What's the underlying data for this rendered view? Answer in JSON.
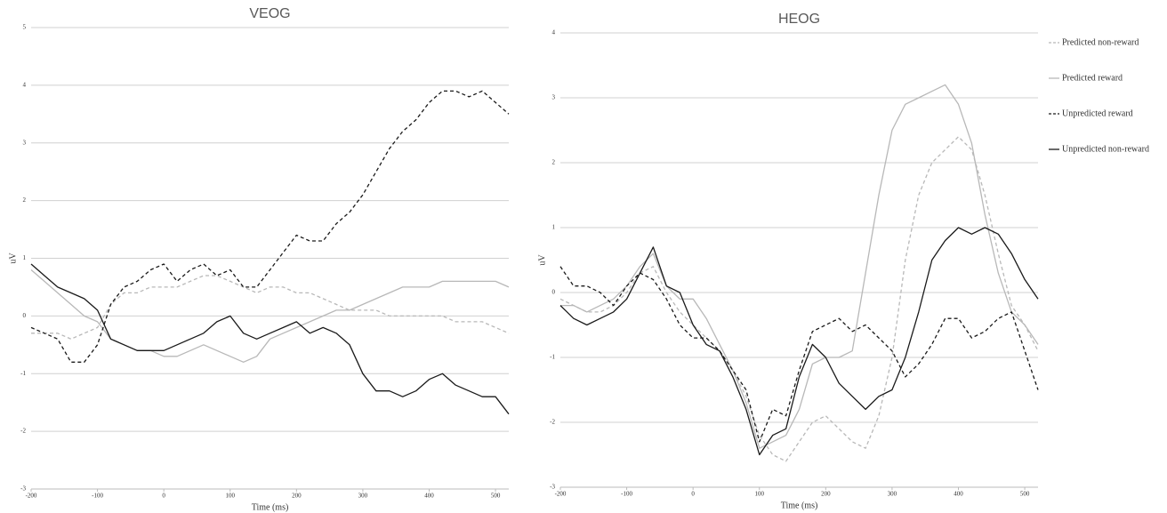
{
  "chart_data": [
    {
      "type": "line",
      "title": "VEOG",
      "xlabel": "Time (ms)",
      "ylabel": "uV",
      "x": [
        -200,
        -180,
        -160,
        -140,
        -120,
        -100,
        -80,
        -60,
        -40,
        -20,
        0,
        20,
        40,
        60,
        80,
        100,
        120,
        140,
        160,
        180,
        200,
        220,
        240,
        260,
        280,
        300,
        320,
        340,
        360,
        380,
        400,
        420,
        440,
        460,
        480,
        500,
        520
      ],
      "xlim": [
        -200,
        520
      ],
      "xticks": [
        -200,
        -100,
        0,
        100,
        200,
        300,
        400,
        500
      ],
      "ylim": [
        -3,
        5
      ],
      "yticks": [
        -3,
        -2,
        -1,
        0,
        1,
        2,
        3,
        4,
        5
      ],
      "grid": true,
      "series": [
        {
          "color": "#b8b8b8",
          "style": "dashed",
          "values": [
            -0.3,
            -0.3,
            -0.3,
            -0.4,
            -0.3,
            -0.2,
            0.2,
            0.4,
            0.4,
            0.5,
            0.5,
            0.5,
            0.6,
            0.7,
            0.7,
            0.6,
            0.5,
            0.4,
            0.5,
            0.5,
            0.4,
            0.4,
            0.3,
            0.2,
            0.1,
            0.1,
            0.1,
            0,
            0,
            0,
            0,
            0,
            -0.1,
            -0.1,
            -0.1,
            -0.2,
            -0.3
          ]
        },
        {
          "color": "#b8b8b8",
          "style": "solid",
          "values": [
            0.8,
            0.6,
            0.4,
            0.2,
            0,
            -0.1,
            -0.4,
            -0.5,
            -0.6,
            -0.6,
            -0.7,
            -0.7,
            -0.6,
            -0.5,
            -0.6,
            -0.7,
            -0.8,
            -0.7,
            -0.4,
            -0.3,
            -0.2,
            -0.1,
            0,
            0.1,
            0.1,
            0.2,
            0.3,
            0.4,
            0.5,
            0.5,
            0.5,
            0.6,
            0.6,
            0.6,
            0.6,
            0.6,
            0.5
          ]
        },
        {
          "color": "#1a1a1a",
          "style": "dashed",
          "values": [
            -0.2,
            -0.3,
            -0.4,
            -0.8,
            -0.8,
            -0.5,
            0.2,
            0.5,
            0.6,
            0.8,
            0.9,
            0.6,
            0.8,
            0.9,
            0.7,
            0.8,
            0.5,
            0.5,
            0.8,
            1.1,
            1.4,
            1.3,
            1.3,
            1.6,
            1.8,
            2.1,
            2.5,
            2.9,
            3.2,
            3.4,
            3.7,
            3.9,
            3.9,
            3.8,
            3.9,
            3.7,
            3.5
          ]
        },
        {
          "color": "#1a1a1a",
          "style": "solid",
          "values": [
            0.9,
            0.7,
            0.5,
            0.4,
            0.3,
            0.1,
            -0.4,
            -0.5,
            -0.6,
            -0.6,
            -0.6,
            -0.5,
            -0.4,
            -0.3,
            -0.1,
            0,
            -0.3,
            -0.4,
            -0.3,
            -0.2,
            -0.1,
            -0.3,
            -0.2,
            -0.3,
            -0.5,
            -1.0,
            -1.3,
            -1.3,
            -1.4,
            -1.3,
            -1.1,
            -1.0,
            -1.2,
            -1.3,
            -1.4,
            -1.4,
            -1.7
          ]
        }
      ]
    },
    {
      "type": "line",
      "title": "HEOG",
      "xlabel": "Time (ms)",
      "ylabel": "uV",
      "x": [
        -200,
        -180,
        -160,
        -140,
        -120,
        -100,
        -80,
        -60,
        -40,
        -20,
        0,
        20,
        40,
        60,
        80,
        100,
        120,
        140,
        160,
        180,
        200,
        220,
        240,
        260,
        280,
        300,
        320,
        340,
        360,
        380,
        400,
        420,
        440,
        460,
        480,
        500,
        520
      ],
      "xlim": [
        -200,
        520
      ],
      "xticks": [
        -200,
        -100,
        0,
        100,
        200,
        300,
        400,
        500
      ],
      "ylim": [
        -3,
        4
      ],
      "yticks": [
        -3,
        -2,
        -1,
        0,
        1,
        2,
        3,
        4
      ],
      "grid": true,
      "legend": "right",
      "series": [
        {
          "name": "Predicted non-reward",
          "color": "#b8b8b8",
          "style": "dashed",
          "values": [
            -0.1,
            -0.2,
            -0.3,
            -0.3,
            -0.2,
            0,
            0.3,
            0.4,
            0,
            -0.3,
            -0.5,
            -0.7,
            -0.9,
            -1.2,
            -1.6,
            -2.2,
            -2.5,
            -2.6,
            -2.3,
            -2.0,
            -1.9,
            -2.1,
            -2.3,
            -2.4,
            -1.9,
            -1.0,
            0.5,
            1.5,
            2.0,
            2.2,
            2.4,
            2.2,
            1.5,
            0.6,
            -0.2,
            -0.5,
            -0.9
          ]
        },
        {
          "name": "Predicted reward",
          "color": "#b8b8b8",
          "style": "solid",
          "values": [
            -0.2,
            -0.2,
            -0.3,
            -0.2,
            -0.1,
            0.1,
            0.4,
            0.6,
            0.1,
            -0.1,
            -0.1,
            -0.4,
            -0.8,
            -1.2,
            -1.7,
            -2.4,
            -2.3,
            -2.2,
            -1.8,
            -1.1,
            -1.0,
            -1.0,
            -0.9,
            0.3,
            1.5,
            2.5,
            2.9,
            3.0,
            3.1,
            3.2,
            2.9,
            2.3,
            1.2,
            0.3,
            -0.3,
            -0.5,
            -0.8
          ]
        },
        {
          "name": "Unpredicted reward",
          "color": "#1a1a1a",
          "style": "dashed",
          "values": [
            0.4,
            0.1,
            0.1,
            0,
            -0.2,
            0.1,
            0.3,
            0.2,
            -0.1,
            -0.5,
            -0.7,
            -0.7,
            -0.9,
            -1.2,
            -1.5,
            -2.3,
            -1.8,
            -1.9,
            -1.2,
            -0.6,
            -0.5,
            -0.4,
            -0.6,
            -0.5,
            -0.7,
            -0.9,
            -1.3,
            -1.1,
            -0.8,
            -0.4,
            -0.4,
            -0.7,
            -0.6,
            -0.4,
            -0.3,
            -0.9,
            -1.5
          ]
        },
        {
          "name": "Unpredicted non-reward",
          "color": "#1a1a1a",
          "style": "solid",
          "values": [
            -0.2,
            -0.4,
            -0.5,
            -0.4,
            -0.3,
            -0.1,
            0.3,
            0.7,
            0.1,
            0,
            -0.5,
            -0.8,
            -0.9,
            -1.3,
            -1.8,
            -2.5,
            -2.2,
            -2.1,
            -1.3,
            -0.8,
            -1.0,
            -1.4,
            -1.6,
            -1.8,
            -1.6,
            -1.5,
            -1.0,
            -0.3,
            0.5,
            0.8,
            1.0,
            0.9,
            1.0,
            0.9,
            0.6,
            0.2,
            -0.1
          ]
        }
      ]
    }
  ]
}
